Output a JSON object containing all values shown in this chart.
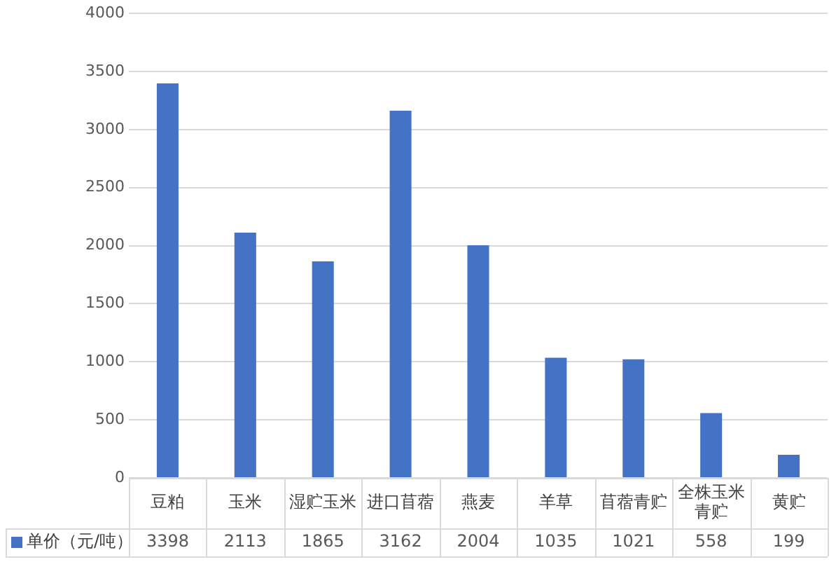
{
  "chart_data": {
    "type": "bar",
    "categories": [
      "豆粕",
      "玉米",
      "湿贮玉米",
      "进口苜蓿",
      "燕麦",
      "羊草",
      "苜蓿青贮",
      "全株玉米青贮",
      "黄贮"
    ],
    "series": [
      {
        "name": "单价（元/吨）",
        "color": "#4472c4",
        "values": [
          3398,
          2113,
          1865,
          3162,
          2004,
          1035,
          1021,
          558,
          199
        ]
      }
    ],
    "ylim": [
      0,
      4000
    ],
    "yticks": [
      0,
      500,
      1000,
      1500,
      2000,
      2500,
      3000,
      3500,
      4000
    ],
    "grid": "y",
    "legend": "bottom left",
    "data_labels": true
  }
}
